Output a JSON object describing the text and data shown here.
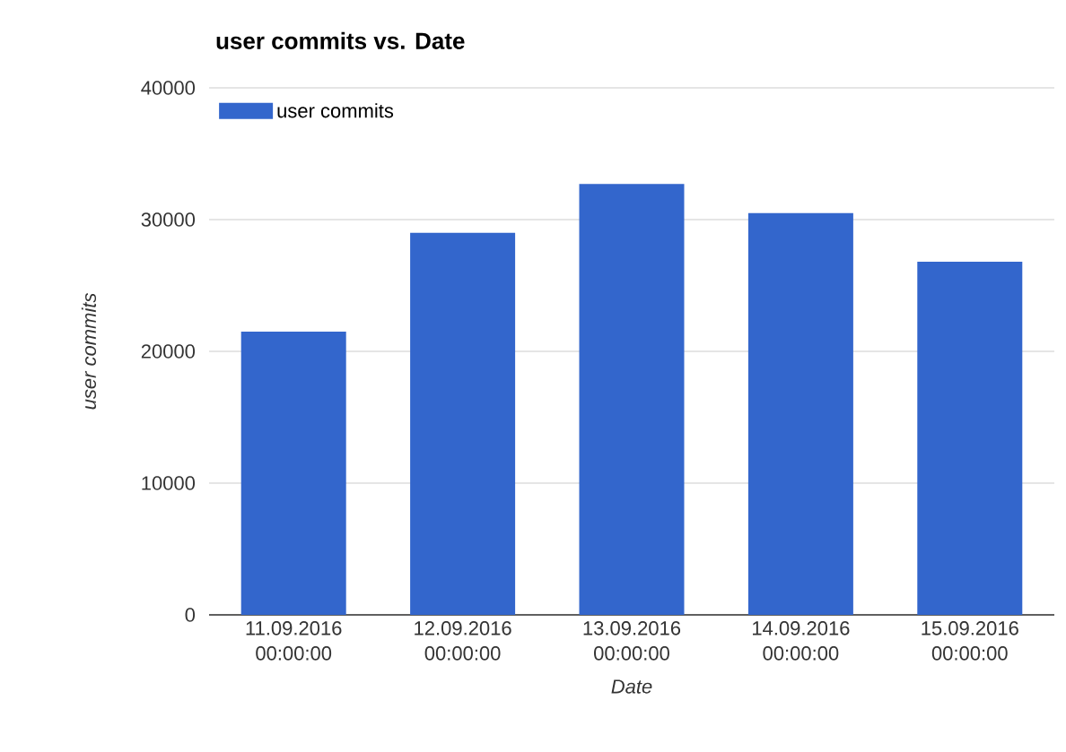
{
  "chart_data": {
    "type": "bar",
    "title": "user commits vs. Date",
    "xlabel": "Date",
    "ylabel": "user commits",
    "categories": [
      "11.09.2016 00:00:00",
      "12.09.2016 00:00:00",
      "13.09.2016 00:00:00",
      "14.09.2016 00:00:00",
      "15.09.2016 00:00:00"
    ],
    "series": [
      {
        "name": "user commits",
        "color": "#3366cc",
        "values": [
          21500,
          29000,
          32700,
          30500,
          26800
        ]
      }
    ],
    "ylim": [
      0,
      40000
    ],
    "yticks": [
      0,
      10000,
      20000,
      30000,
      40000
    ],
    "grid": "y",
    "legend": "top left"
  }
}
